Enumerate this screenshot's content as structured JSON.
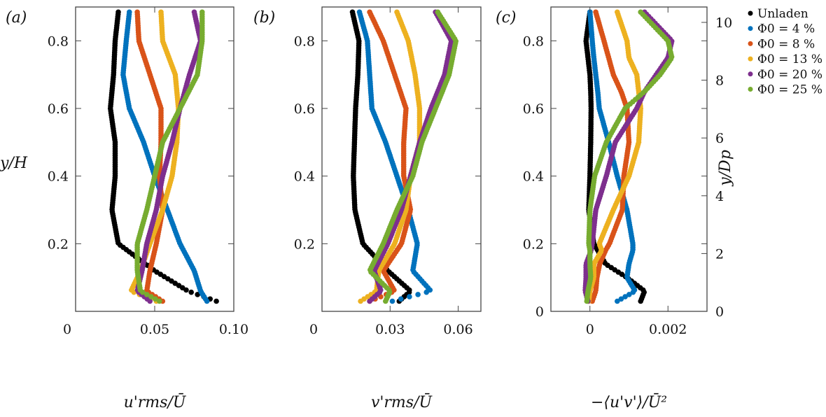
{
  "legend": [
    {
      "label": "Unladen",
      "color": "#000000"
    },
    {
      "label": "Φ0 = 4 %",
      "sym": "Φ",
      "sub": "0",
      "rest": " = 4 %",
      "color": "#0072BD"
    },
    {
      "label": "Φ0 = 8 %",
      "sym": "Φ",
      "sub": "0",
      "rest": " = 8 %",
      "color": "#D95319"
    },
    {
      "label": "Φ0 = 13 %",
      "sym": "Φ",
      "sub": "0",
      "rest": " = 13 %",
      "color": "#EDB120"
    },
    {
      "label": "Φ0 = 20 %",
      "sym": "Φ",
      "sub": "0",
      "rest": " = 20 %",
      "color": "#7E2F8E"
    },
    {
      "label": "Φ0 = 25 %",
      "sym": "Φ",
      "sub": "0",
      "rest": " = 25 %",
      "color": "#77AC30"
    }
  ],
  "shared_ylabel": "y/H",
  "right_ylabel": "y/Dp",
  "right_yticks": [
    "0",
    "2",
    "4",
    "6",
    "8",
    "10"
  ],
  "chart_data": [
    {
      "type": "scatter",
      "panel": "(a)",
      "xlabel": "u'rms/Ū",
      "ylabel": "y/H",
      "xlim": [
        0,
        0.1
      ],
      "ylim": [
        0,
        0.9
      ],
      "xticks": [
        0,
        0.05,
        0.1
      ],
      "xtick_labels": [
        "0",
        "0.05",
        "0.10"
      ],
      "yticks": [
        0.2,
        0.4,
        0.6,
        0.8
      ],
      "ytick_labels": [
        "0.2",
        "0.4",
        "0.6",
        "0.8"
      ],
      "y": [
        0.885,
        0.8,
        0.7,
        0.6,
        0.5,
        0.4,
        0.3,
        0.2,
        0.12,
        0.06,
        0.03
      ],
      "series": [
        {
          "name": "Unladen",
          "x": [
            0.027,
            0.025,
            0.024,
            0.022,
            0.025,
            0.025,
            0.023,
            0.027,
            0.05,
            0.071,
            0.089
          ]
        },
        {
          "name": "Φ0 = 4 %",
          "x": [
            0.034,
            0.032,
            0.03,
            0.034,
            0.043,
            0.05,
            0.058,
            0.066,
            0.075,
            0.079,
            0.083
          ]
        },
        {
          "name": "Φ0 = 8 %",
          "x": [
            0.039,
            0.04,
            0.047,
            0.054,
            0.054,
            0.053,
            0.055,
            0.051,
            0.047,
            0.045,
            0.055
          ]
        },
        {
          "name": "Φ0 = 13 %",
          "x": [
            0.054,
            0.055,
            0.063,
            0.065,
            0.064,
            0.061,
            0.055,
            0.047,
            0.041,
            0.035,
            0.051
          ]
        },
        {
          "name": "Φ0 = 20 %",
          "x": [
            0.075,
            0.079,
            0.072,
            0.066,
            0.061,
            0.055,
            0.051,
            0.045,
            0.042,
            0.039,
            0.047
          ]
        },
        {
          "name": "Φ0 = 25 %",
          "x": [
            0.08,
            0.08,
            0.077,
            0.066,
            0.055,
            0.05,
            0.045,
            0.039,
            0.039,
            0.041,
            0.053
          ]
        }
      ]
    },
    {
      "type": "scatter",
      "panel": "(b)",
      "xlabel": "v'rms/Ū",
      "ylabel": "y/H",
      "xlim": [
        0,
        0.07
      ],
      "ylim": [
        0,
        0.9
      ],
      "xticks": [
        0,
        0.03,
        0.06
      ],
      "xtick_labels": [
        "0",
        "0.03",
        "0.06"
      ],
      "yticks": [
        0.2,
        0.4,
        0.6,
        0.8
      ],
      "ytick_labels": [
        "0.2",
        "0.4",
        "0.6",
        "0.8"
      ],
      "y": [
        0.885,
        0.8,
        0.7,
        0.6,
        0.5,
        0.4,
        0.3,
        0.2,
        0.12,
        0.06,
        0.03
      ],
      "series": [
        {
          "name": "Unladen",
          "x": [
            0.0134,
            0.0163,
            0.0158,
            0.0148,
            0.0143,
            0.0138,
            0.0145,
            0.018,
            0.029,
            0.039,
            0.034
          ]
        },
        {
          "name": "Φ0 = 4 %",
          "x": [
            0.0165,
            0.02,
            0.021,
            0.022,
            0.028,
            0.033,
            0.038,
            0.042,
            0.04,
            0.048,
            0.031
          ]
        },
        {
          "name": "Φ0 = 8 %",
          "x": [
            0.021,
            0.027,
            0.032,
            0.037,
            0.036,
            0.036,
            0.039,
            0.035,
            0.027,
            0.032,
            0.021
          ]
        },
        {
          "name": "Φ0 = 13 %",
          "x": [
            0.033,
            0.038,
            0.041,
            0.043,
            0.043,
            0.039,
            0.037,
            0.032,
            0.025,
            0.024,
            0.017
          ]
        },
        {
          "name": "Φ0 = 20 %",
          "x": [
            0.05,
            0.057,
            0.054,
            0.048,
            0.043,
            0.039,
            0.035,
            0.029,
            0.023,
            0.026,
            0.021
          ]
        },
        {
          "name": "Φ0 = 25 %",
          "x": [
            0.051,
            0.059,
            0.056,
            0.05,
            0.044,
            0.04,
            0.033,
            0.027,
            0.021,
            0.03,
            0.028
          ]
        }
      ]
    },
    {
      "type": "scatter",
      "panel": "(c)",
      "xlabel": "−⟨u'v'⟩/Ū²",
      "ylabel": "y/H",
      "xlim": [
        -0.001,
        0.003
      ],
      "ylim": [
        0,
        0.9
      ],
      "xticks": [
        0,
        0.002
      ],
      "xtick_labels": [
        "0",
        "0.002"
      ],
      "yticks": [
        0,
        0.2,
        0.4,
        0.6,
        0.8
      ],
      "ytick_labels": [
        "0",
        "0.2",
        "0.4",
        "0.6",
        "0.8"
      ],
      "y": [
        0.885,
        0.8,
        0.75,
        0.7,
        0.65,
        0.6,
        0.5,
        0.4,
        0.3,
        0.2,
        0.18,
        0.14,
        0.1,
        0.06,
        0.03
      ],
      "series": [
        {
          "name": "Unladen",
          "x": [
            0,
            -0.0001,
            -5e-05,
            0,
            2e-05,
            3e-05,
            2e-05,
            0,
            -3e-05,
            0.0001,
            0.0002,
            0.0004,
            0.00095,
            0.0014,
            0.0013
          ]
        },
        {
          "name": "Φ0 = 4 %",
          "x": [
            0,
            6e-05,
            0.0001,
            0.00015,
            0.0002,
            0.00024,
            0.00048,
            0.0007,
            0.00095,
            0.0011,
            0.0011,
            0.001,
            0.00095,
            0.00116,
            0.0007
          ]
        },
        {
          "name": "Φ0 = 8 %",
          "x": [
            0.00015,
            0.00036,
            0.00048,
            0.0006,
            0.0008,
            0.00095,
            0.001,
            0.00087,
            0.00083,
            0.0005,
            0.0004,
            0.00025,
            0.00018,
            0.00015,
            6e-05
          ]
        },
        {
          "name": "Φ0 = 13 %",
          "x": [
            0.0007,
            0.00095,
            0.001,
            0.0012,
            0.00125,
            0.0013,
            0.00125,
            0.001,
            0.0006,
            0.00024,
            0.0003,
            0.0001,
            0.0001,
            0,
            -3e-05
          ]
        },
        {
          "name": "Φ0 = 20 %",
          "x": [
            0.0014,
            0.0021,
            0.002,
            0.0017,
            0.0014,
            0.0012,
            0.00065,
            0.00042,
            0.00015,
            6e-05,
            3e-05,
            -0.0001,
            -0.0001,
            -0.00012,
            -5e-05
          ]
        },
        {
          "name": "Φ0 = 25 %",
          "x": [
            0.0013,
            0.002,
            0.0021,
            0.0018,
            0.0014,
            0.0009,
            0.00042,
            0.00012,
            0,
            -3e-05,
            0,
            0,
            2e-05,
            -5e-05,
            -8e-05
          ]
        }
      ]
    }
  ]
}
